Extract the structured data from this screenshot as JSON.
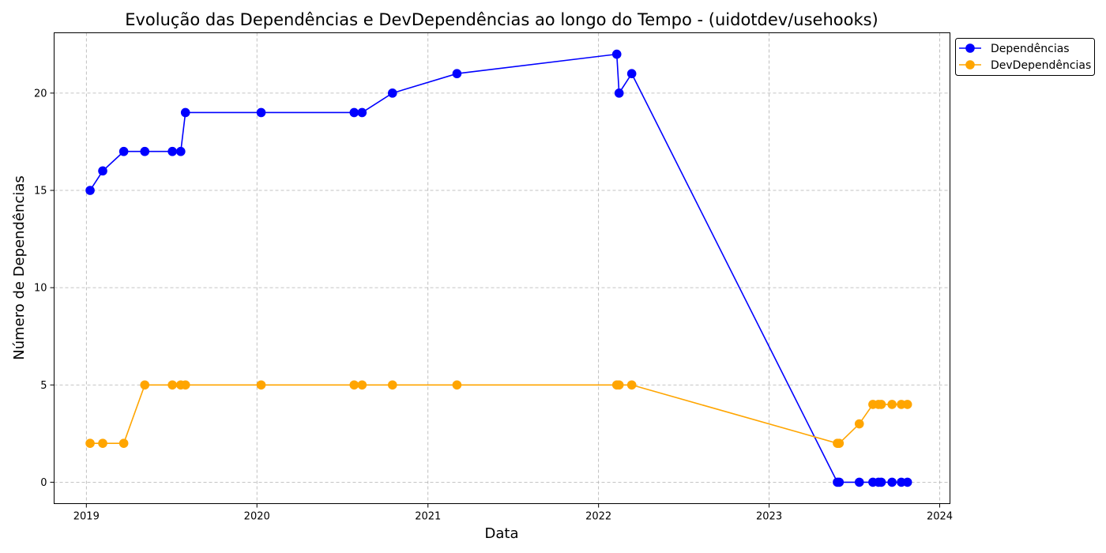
{
  "chart_data": {
    "type": "line",
    "title": "Evolução das Dependências e DevDependências ao longo do Tempo - (uidotdev/usehooks)",
    "xlabel": "Data",
    "ylabel": "Número de Dependências",
    "x_ticks": [
      "2019",
      "2020",
      "2021",
      "2022",
      "2023",
      "2024"
    ],
    "y_ticks": [
      "0",
      "5",
      "10",
      "15",
      "20"
    ],
    "xlim": [
      "2018-10-24",
      "2024-01-23"
    ],
    "ylim": [
      -1.1,
      23.1
    ],
    "grid": true,
    "legend_position": "top-right-outside",
    "x": [
      "2019-01-09",
      "2019-02-05",
      "2019-03-22",
      "2019-05-06",
      "2019-07-04",
      "2019-07-22",
      "2019-08-01",
      "2020-01-10",
      "2020-07-27",
      "2020-08-13",
      "2020-10-17",
      "2021-03-04",
      "2022-02-09",
      "2022-02-14",
      "2022-03-13",
      "2023-05-27",
      "2023-05-31",
      "2023-07-13",
      "2023-08-11",
      "2023-08-23",
      "2023-08-29",
      "2023-09-21",
      "2023-10-11",
      "2023-10-24"
    ],
    "series": [
      {
        "name": "Dependências",
        "color": "#0000ff",
        "values": [
          15,
          16,
          17,
          17,
          17,
          17,
          19,
          19,
          19,
          19,
          20,
          21,
          22,
          20,
          21,
          0,
          0,
          0,
          0,
          0,
          0,
          0,
          0,
          0
        ]
      },
      {
        "name": "DevDependências",
        "color": "#ffa500",
        "values": [
          2,
          2,
          2,
          5,
          5,
          5,
          5,
          5,
          5,
          5,
          5,
          5,
          5,
          5,
          5,
          2,
          2,
          3,
          4,
          4,
          4,
          4,
          4,
          4
        ]
      }
    ]
  }
}
